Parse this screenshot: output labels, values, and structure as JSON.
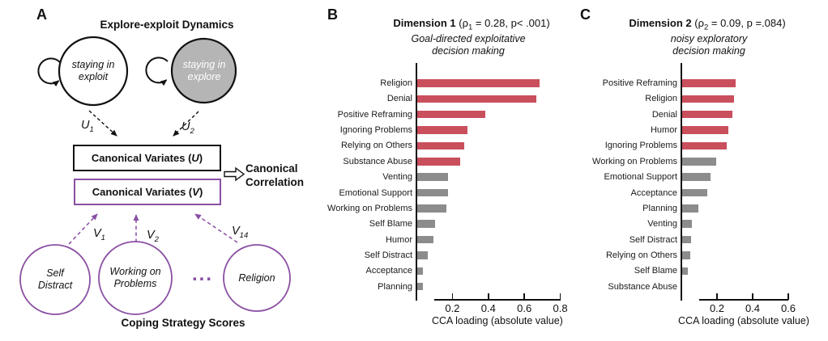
{
  "colors": {
    "bar_red": "#c94f5d",
    "bar_gray": "#8c8c8c",
    "purple": "#8a4fa3",
    "circle_gray_fill": "#b5b5b5",
    "ink": "#111111"
  },
  "panelA": {
    "label": "A",
    "title": "Explore-exploit Dynamics",
    "exploit_circle": {
      "line1": "staying in",
      "line2": "exploit"
    },
    "explore_circle": {
      "line1": "staying in",
      "line2": "explore"
    },
    "u1": {
      "base": "U",
      "sub": "1"
    },
    "u2": {
      "base": "U",
      "sub": "2"
    },
    "box_u": {
      "pre": "Canonical Variates (",
      "var": "U",
      "post": ")"
    },
    "box_v": {
      "pre": "Canonical Variates (",
      "var": "V",
      "post": ")"
    },
    "correlation_line1": "Canonical",
    "correlation_line2": "Correlation",
    "v1": {
      "base": "V",
      "sub": "1"
    },
    "v2": {
      "base": "V",
      "sub": "2"
    },
    "v14": {
      "base": "V",
      "sub": "14"
    },
    "circle_self_distract": {
      "line1": "Self",
      "line2": "Distract"
    },
    "circle_working": {
      "line1": "Working on",
      "line2": "Problems"
    },
    "dots": "...",
    "circle_religion": "Religion",
    "footer": "Coping Strategy Scores"
  },
  "chart_data": [
    {
      "type": "bar",
      "orientation": "horizontal",
      "panel_label": "B",
      "title_parts": {
        "bold": "Dimension 1",
        "pre": " (ρ",
        "sub": "1",
        "post": " = 0.28, p< .001)"
      },
      "subtitle_lines": [
        "Goal-directed exploitative",
        "decision making"
      ],
      "xlabel": "CCA loading (absolute value)",
      "xlim": [
        0,
        0.8
      ],
      "tick_labels": [
        "0.2",
        "0.4",
        "0.6",
        "0.8"
      ],
      "items": [
        {
          "label": "Religion",
          "value": 0.68,
          "color": "red"
        },
        {
          "label": "Denial",
          "value": 0.66,
          "color": "red"
        },
        {
          "label": "Positive Reframing",
          "value": 0.38,
          "color": "red"
        },
        {
          "label": "Ignoring Problems",
          "value": 0.28,
          "color": "red"
        },
        {
          "label": "Relying on Others",
          "value": 0.26,
          "color": "red"
        },
        {
          "label": "Substance Abuse",
          "value": 0.24,
          "color": "red"
        },
        {
          "label": "Venting",
          "value": 0.17,
          "color": "gray"
        },
        {
          "label": "Emotional Support",
          "value": 0.17,
          "color": "gray"
        },
        {
          "label": "Working on Problems",
          "value": 0.16,
          "color": "gray"
        },
        {
          "label": "Self Blame",
          "value": 0.1,
          "color": "gray"
        },
        {
          "label": "Humor",
          "value": 0.09,
          "color": "gray"
        },
        {
          "label": "Self Distract",
          "value": 0.06,
          "color": "gray"
        },
        {
          "label": "Acceptance",
          "value": 0.03,
          "color": "gray"
        },
        {
          "label": "Planning",
          "value": 0.03,
          "color": "gray"
        }
      ]
    },
    {
      "type": "bar",
      "orientation": "horizontal",
      "panel_label": "C",
      "title_parts": {
        "bold": "Dimension 2",
        "pre": " (ρ",
        "sub": "2",
        "post": " = 0.09, p =.084)"
      },
      "subtitle_lines": [
        "noisy exploratory",
        "decision making"
      ],
      "xlabel": "CCA loading (absolute value)",
      "xlim": [
        0,
        0.6
      ],
      "tick_labels": [
        "0.2",
        "0.4",
        "0.6"
      ],
      "items": [
        {
          "label": "Positive Reframing",
          "value": 0.3,
          "color": "red"
        },
        {
          "label": "Religion",
          "value": 0.29,
          "color": "red"
        },
        {
          "label": "Denial",
          "value": 0.28,
          "color": "red"
        },
        {
          "label": "Humor",
          "value": 0.26,
          "color": "red"
        },
        {
          "label": "Ignoring Problems",
          "value": 0.25,
          "color": "red"
        },
        {
          "label": "Working on Problems",
          "value": 0.19,
          "color": "gray"
        },
        {
          "label": "Emotional Support",
          "value": 0.16,
          "color": "gray"
        },
        {
          "label": "Acceptance",
          "value": 0.14,
          "color": "gray"
        },
        {
          "label": "Planning",
          "value": 0.09,
          "color": "gray"
        },
        {
          "label": "Venting",
          "value": 0.055,
          "color": "gray"
        },
        {
          "label": "Self Distract",
          "value": 0.05,
          "color": "gray"
        },
        {
          "label": "Relying on Others",
          "value": 0.045,
          "color": "gray"
        },
        {
          "label": "Self Blame",
          "value": 0.03,
          "color": "gray"
        },
        {
          "label": "Substance Abuse",
          "value": 0.0,
          "color": "gray"
        }
      ]
    }
  ]
}
